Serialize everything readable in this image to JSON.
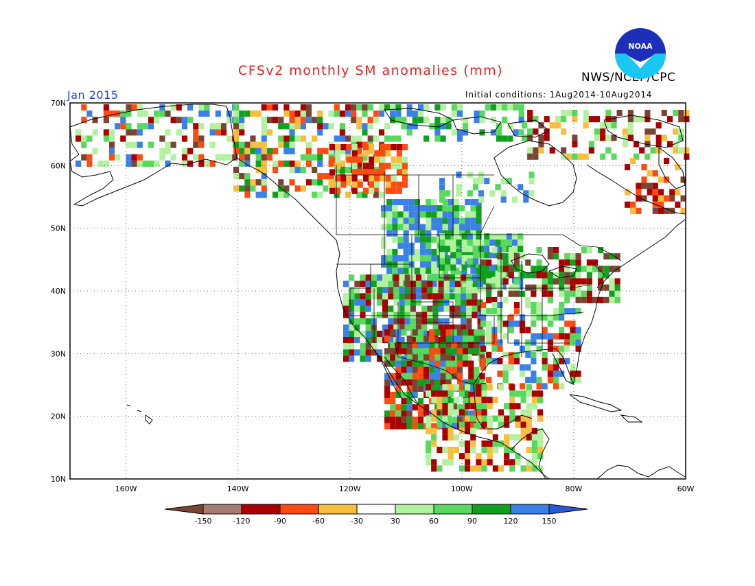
{
  "header": {
    "title": "CFSv2 monthly SM anomalies (mm)",
    "agency": "NWS/NCEP/CPC",
    "valid_month": "Jan 2015",
    "initial_conditions": "Initial conditions: 1Aug2014-10Aug2014",
    "logo_text": "NOAA"
  },
  "map": {
    "lat_labels": [
      "70N",
      "60N",
      "50N",
      "40N",
      "30N",
      "20N",
      "10N"
    ],
    "lon_labels": [
      "160W",
      "140W",
      "120W",
      "100W",
      "80W",
      "60W"
    ],
    "lat_range": [
      10,
      70
    ],
    "lon_range": [
      -170,
      -60
    ],
    "grid": "dotted"
  },
  "legend": {
    "ticks": [
      "-150",
      "-120",
      "-90",
      "-60",
      "-30",
      "30",
      "60",
      "90",
      "120",
      "150"
    ],
    "colors": [
      "#7a4434",
      "#a67c6f",
      "#aa0000",
      "#ff4a10",
      "#f8be3e",
      "#ffffff",
      "#b2f29e",
      "#56d95c",
      "#10a020",
      "#3a80e8",
      "#2a56d8"
    ],
    "units": "mm"
  },
  "anomaly_colors": {
    "dry_extreme": "#7a4434",
    "dry_strong": "#aa0000",
    "dry_moderate": "#ff4a10",
    "dry_weak": "#f8be3e",
    "wet_weak": "#b2f29e",
    "wet_moderate": "#56d95c",
    "wet_strong": "#10a020",
    "wet_extreme": "#3a80e8"
  }
}
